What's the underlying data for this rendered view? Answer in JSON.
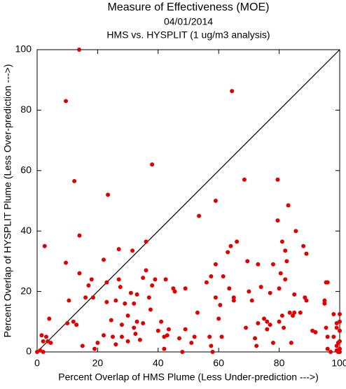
{
  "chart_data": {
    "type": "scatter",
    "title": "Measure of Effectiveness (MOE)",
    "subtitle": "04/01/2014",
    "subtitle2": "HMS vs. HYSPLIT  (1 ug/m3 analysis)",
    "x_label": "Percent Overlap of HMS Plume (Less Under-prediction --->)",
    "y_label": "Percent Overlap of HYSPLIT Plume (Less Over-prediction --->)",
    "color": "#e00000",
    "xlim": [
      0,
      100
    ],
    "ylim": [
      0,
      100
    ],
    "xticks": [
      0,
      20,
      40,
      60,
      80,
      100
    ],
    "yticks": [
      0,
      20,
      40,
      60,
      80,
      100
    ],
    "x": [
      0,
      1,
      1.5,
      2,
      2.5,
      3,
      3.5,
      4,
      4.5,
      2,
      9.5,
      9.5,
      10,
      10.5,
      12,
      12.3,
      13,
      13.9,
      14,
      14,
      15,
      16,
      17,
      18,
      18.5,
      19,
      20,
      22,
      22,
      23,
      23,
      23.4,
      24.5,
      25,
      26,
      26,
      27,
      27,
      27.5,
      28,
      28,
      29,
      30,
      30,
      31,
      31.5,
      32,
      32,
      32.5,
      33,
      33,
      34,
      35,
      35,
      36,
      36,
      37,
      37.5,
      38,
      38,
      39,
      40,
      41,
      42,
      42,
      42.5,
      43,
      43.5,
      45,
      45.5,
      47,
      48,
      49,
      49,
      51,
      52,
      53,
      53.5,
      56,
      57,
      57.5,
      57.5,
      58,
      59,
      59,
      59,
      60,
      60.5,
      61,
      61.5,
      63,
      63.5,
      64,
      64.4,
      65,
      65,
      66,
      68.5,
      69,
      69.5,
      70,
      71,
      72,
      72.5,
      73,
      73,
      74,
      75,
      76,
      76,
      77,
      77,
      78,
      78,
      79.5,
      79.5,
      80,
      80,
      80.5,
      81,
      81,
      81.5,
      82,
      82,
      82.5,
      83,
      83.5,
      84,
      84.5,
      85,
      85,
      85.5,
      87,
      88,
      88.5,
      89,
      89,
      91,
      92,
      95,
      95,
      95.5,
      95.5,
      96,
      96,
      96,
      97,
      98,
      98,
      99,
      99,
      99,
      99.5,
      99.5,
      100,
      100,
      100,
      100,
      100,
      100,
      99
    ],
    "values": [
      0,
      0.5,
      5.5,
      3.5,
      35,
      5,
      3.5,
      11,
      3,
      0,
      29.5,
      83,
      9.5,
      17,
      10,
      56.5,
      9,
      100,
      38.5,
      26,
      2,
      18,
      22,
      24,
      18,
      1,
      3,
      30.5,
      5.5,
      16.5,
      23,
      52,
      10.5,
      5,
      2.5,
      17,
      34,
      24,
      21.5,
      9,
      5,
      16,
      3.5,
      12,
      19.5,
      33.5,
      16,
      8,
      6,
      10,
      19,
      4,
      9.5,
      24.5,
      27,
      36.5,
      18,
      14,
      62,
      22,
      24,
      7,
      10,
      5,
      1,
      24,
      5.5,
      7.5,
      21,
      20,
      4.5,
      0,
      7.5,
      21,
      3,
      5,
      13,
      45,
      23,
      5,
      2,
      25,
      0,
      29,
      18,
      50,
      11,
      15.5,
      5,
      25,
      33,
      21,
      35,
      86.3,
      18,
      17,
      36.5,
      57,
      8,
      30,
      20,
      17,
      4.5,
      2,
      29,
      9.5,
      21.5,
      11,
      7.5,
      10,
      19.5,
      9,
      29,
      3,
      57,
      43.5,
      21,
      10,
      26,
      36.5,
      12,
      8,
      24,
      33.5,
      30,
      48.5,
      13,
      3,
      12,
      19,
      13,
      40,
      13,
      35,
      18,
      17,
      32.5,
      7,
      6.5,
      17,
      16,
      8,
      23,
      5,
      1,
      23,
      0,
      12.5,
      5,
      2,
      9.5,
      8,
      3,
      0,
      12.5,
      7,
      1,
      10,
      3.5,
      0,
      0.5
    ]
  }
}
